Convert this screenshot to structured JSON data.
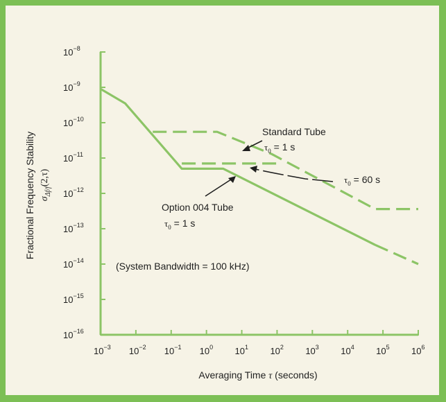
{
  "chart_data": {
    "type": "line",
    "xlabel": "Averaging Time",
    "xlabel_symbol": "τ",
    "xlabel_unit": "(seconds)",
    "ylabel": "Fractional Frequency Stability",
    "ylabel_symbol": "σ",
    "ylabel_subscript": "Δf/f",
    "ylabel_arg": "(2,τ)",
    "x_scale": "log",
    "y_scale": "log",
    "xlim": [
      0.001,
      1000000
    ],
    "ylim": [
      1e-16,
      1e-08
    ],
    "x_ticks": [
      {
        "base": "10",
        "exp": "−3",
        "value": 0.001
      },
      {
        "base": "10",
        "exp": "−2",
        "value": 0.01
      },
      {
        "base": "10",
        "exp": "−1",
        "value": 0.1
      },
      {
        "base": "10",
        "exp": "0",
        "value": 1
      },
      {
        "base": "10",
        "exp": "1",
        "value": 10
      },
      {
        "base": "10",
        "exp": "2",
        "value": 100
      },
      {
        "base": "10",
        "exp": "3",
        "value": 1000
      },
      {
        "base": "10",
        "exp": "4",
        "value": 10000
      },
      {
        "base": "10",
        "exp": "5",
        "value": 100000
      },
      {
        "base": "10",
        "exp": "6",
        "value": 1000000
      }
    ],
    "y_ticks": [
      {
        "base": "10",
        "exp": "−8",
        "value": 1e-08
      },
      {
        "base": "10",
        "exp": "−9",
        "value": 1e-09
      },
      {
        "base": "10",
        "exp": "−10",
        "value": 1e-10
      },
      {
        "base": "10",
        "exp": "−11",
        "value": 1e-11
      },
      {
        "base": "10",
        "exp": "−12",
        "value": 1e-12
      },
      {
        "base": "10",
        "exp": "−13",
        "value": 1e-13
      },
      {
        "base": "10",
        "exp": "−14",
        "value": 1e-14
      },
      {
        "base": "10",
        "exp": "−15",
        "value": 1e-15
      },
      {
        "base": "10",
        "exp": "−16",
        "value": 1e-16
      }
    ],
    "grid": false,
    "series": [
      {
        "style": "solid",
        "points": [
          [
            0.001,
            9e-10
          ],
          [
            0.005,
            3.5e-10
          ],
          [
            0.2,
            5e-12
          ],
          [
            3,
            5e-12
          ],
          [
            60000,
            3.5e-14
          ]
        ]
      },
      {
        "style": "dashed",
        "points": [
          [
            60000,
            3.5e-14
          ],
          [
            1000000,
            1e-14
          ]
        ]
      },
      {
        "style": "dashed",
        "points": [
          [
            0.03,
            5.5e-11
          ],
          [
            2,
            5.5e-11
          ],
          [
            70,
            1.3e-11
          ],
          [
            60000,
            3.6e-13
          ],
          [
            1000000,
            3.6e-13
          ]
        ]
      },
      {
        "style": "dashed",
        "points": [
          [
            0.2,
            7e-12
          ],
          [
            100,
            7e-12
          ]
        ]
      }
    ],
    "annotations": {
      "standard_tube": {
        "label": "Standard Tube",
        "tau_sym": "τ",
        "tau_sub": "0",
        "tau_val": " = 1 s"
      },
      "sixty_s": {
        "tau_sym": "τ",
        "tau_sub": "0",
        "tau_val": " = 60 s"
      },
      "option_tube": {
        "label": "Option 004 Tube",
        "tau_sym": "τ",
        "tau_sub": "0",
        "tau_val": " = 1 s"
      },
      "bandwidth": "(System Bandwidth = 100 kHz)"
    },
    "colors": {
      "curve": "#8cc466",
      "axis": "#8cc466",
      "frame": "#7cbf55",
      "background": "#f6f3e6"
    }
  }
}
